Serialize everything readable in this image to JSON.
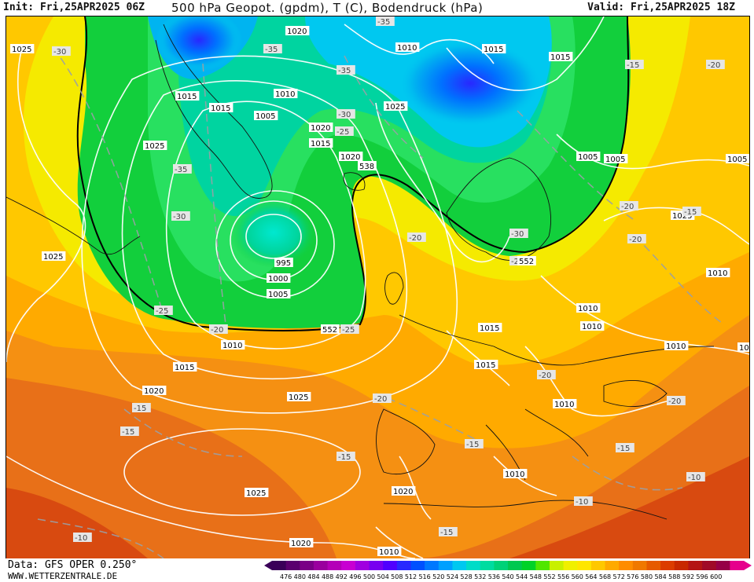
{
  "header": {
    "init": "Init: Fri,25APR2025 06Z",
    "title": "500 hPa Geopot. (gpdm), T (C), Bodendruck (hPa)",
    "valid": "Valid: Fri,25APR2025 18Z"
  },
  "footer": {
    "data": "Data: GFS OPER 0.250°",
    "www": "WWW.WETTERZENTRALE.DE"
  },
  "colorbar": {
    "ticks": [
      "476",
      "480",
      "484",
      "488",
      "492",
      "496",
      "500",
      "504",
      "508",
      "512",
      "516",
      "520",
      "524",
      "528",
      "532",
      "536",
      "540",
      "544",
      "548",
      "552",
      "556",
      "560",
      "564",
      "568",
      "572",
      "576",
      "580",
      "584",
      "588",
      "592",
      "596",
      "600"
    ],
    "colors": [
      "#3a0058",
      "#5a006e",
      "#7a0086",
      "#9a009e",
      "#b400b8",
      "#c800d2",
      "#a000e0",
      "#7800f0",
      "#5000ff",
      "#2828ff",
      "#0050ff",
      "#0078ff",
      "#00a0ff",
      "#00c8f0",
      "#00dcc8",
      "#00dca0",
      "#00d278",
      "#00c850",
      "#00d228",
      "#50e600",
      "#c8f000",
      "#f0f000",
      "#ffe600",
      "#ffc800",
      "#ffaa00",
      "#ff8c00",
      "#f07800",
      "#e65a00",
      "#dc3c00",
      "#c82800",
      "#b41414",
      "#a00a28",
      "#960046",
      "#e6008c"
    ]
  },
  "legend_labels": {
    "pressure": [
      {
        "text": "1025"
      },
      {
        "text": "1020"
      },
      {
        "text": "1010"
      },
      {
        "text": "1015"
      },
      {
        "text": "1015"
      },
      {
        "text": "1015"
      },
      {
        "text": "1015"
      },
      {
        "text": "1010"
      },
      {
        "text": "1005"
      },
      {
        "text": "1020"
      },
      {
        "text": "1015"
      },
      {
        "text": "1025"
      },
      {
        "text": "1020"
      },
      {
        "text": "1025"
      },
      {
        "text": "1005"
      },
      {
        "text": "1005"
      },
      {
        "text": "1025"
      },
      {
        "text": "1025"
      },
      {
        "text": "995"
      },
      {
        "text": "1000"
      },
      {
        "text": "1005"
      },
      {
        "text": "1010"
      },
      {
        "text": "1015"
      },
      {
        "text": "1020"
      },
      {
        "text": "1025"
      },
      {
        "text": "1025"
      },
      {
        "text": "1020"
      },
      {
        "text": "1015"
      },
      {
        "text": "1010"
      },
      {
        "text": "1010"
      },
      {
        "text": "1010"
      },
      {
        "text": "1010"
      },
      {
        "text": "1015"
      },
      {
        "text": "1010"
      },
      {
        "text": "1020"
      },
      {
        "text": "1010"
      },
      {
        "text": "1005"
      },
      {
        "text": "1010"
      },
      {
        "text": "10"
      }
    ],
    "temperature": [
      {
        "text": "-30"
      },
      {
        "text": "-35"
      },
      {
        "text": "-35"
      },
      {
        "text": "-35"
      },
      {
        "text": "-30"
      },
      {
        "text": "-25"
      },
      {
        "text": "-35"
      },
      {
        "text": "-30"
      },
      {
        "text": "-25"
      },
      {
        "text": "-20"
      },
      {
        "text": "-25"
      },
      {
        "text": "-20"
      },
      {
        "text": "-30"
      },
      {
        "text": "-25"
      },
      {
        "text": "-20"
      },
      {
        "text": "-20"
      },
      {
        "text": "-15"
      },
      {
        "text": "-20"
      },
      {
        "text": "-15"
      },
      {
        "text": "-20"
      },
      {
        "text": "-20"
      },
      {
        "text": "-15"
      },
      {
        "text": "-15"
      },
      {
        "text": "-15"
      },
      {
        "text": "-15"
      },
      {
        "text": "-10"
      },
      {
        "text": "-10"
      },
      {
        "text": "-15"
      },
      {
        "text": "-10"
      },
      {
        "text": "-20"
      },
      {
        "text": "-15"
      }
    ],
    "geopot": [
      {
        "text": "538"
      },
      {
        "text": "552"
      },
      {
        "text": "552"
      }
    ]
  },
  "colors": {
    "green": "#12cf3c",
    "cyan": "#00c8f0",
    "blue": "#1040ff",
    "yellow": "#f5f000",
    "orange": "#ffb400",
    "dark_orange": "#f07800",
    "red": "#e05a00"
  }
}
